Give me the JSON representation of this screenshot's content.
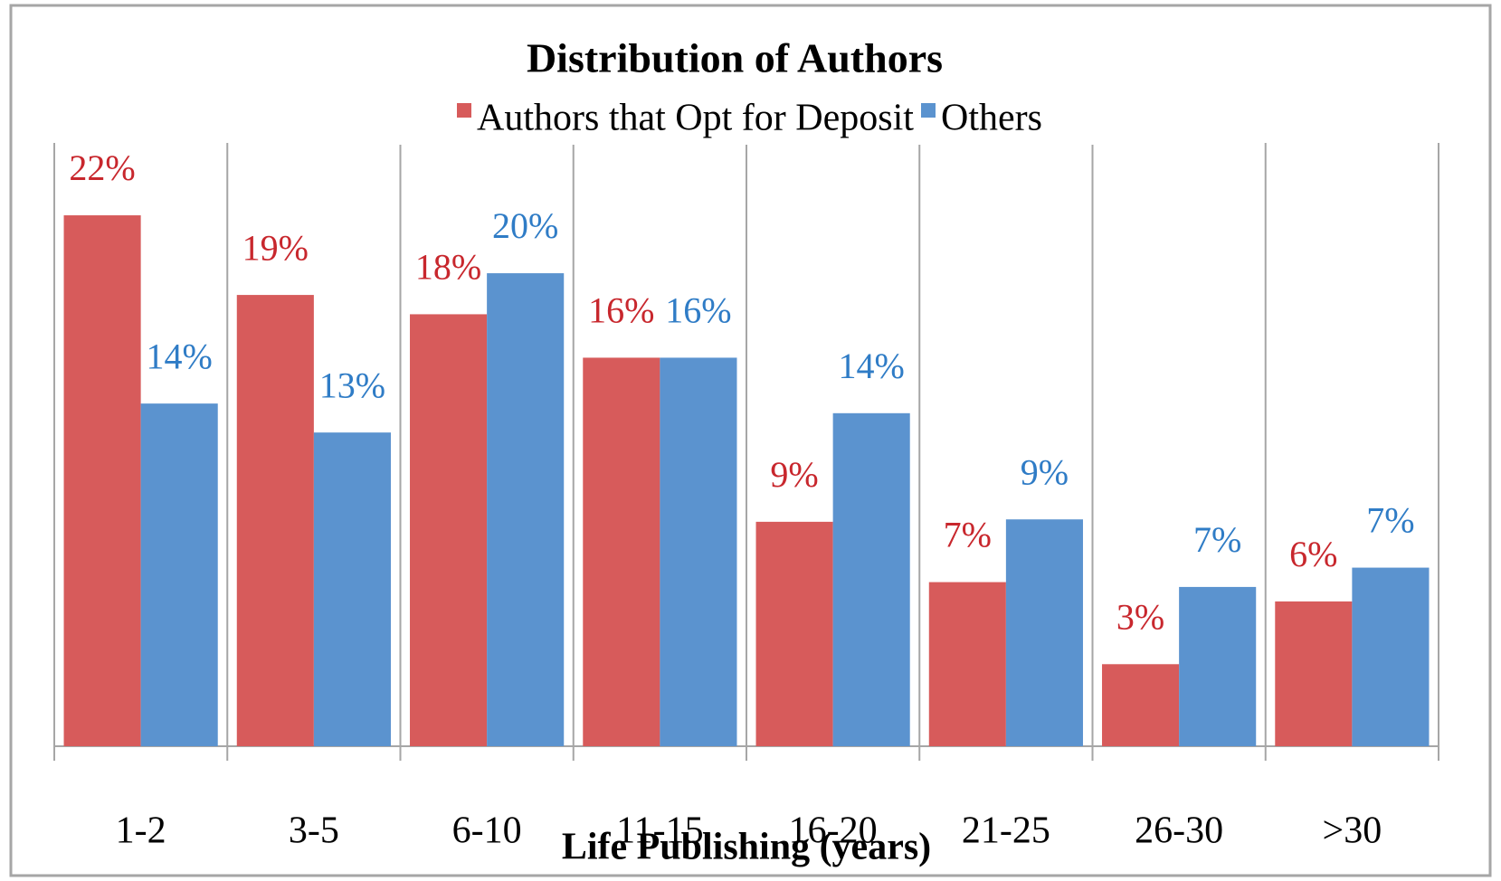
{
  "chart_data": {
    "type": "bar",
    "title": "Distribution of Authors",
    "x_label": "Life Publishing (years)",
    "categories": [
      "1-2",
      "3-5",
      "6-10",
      "11-15",
      "16-20",
      "21-25",
      "26-30",
      ">30"
    ],
    "series": [
      {
        "name": "Authors that Opt for Deposit",
        "color": "#d75b5b",
        "values": [
          22.0,
          18.7,
          17.9,
          16.1,
          9.3,
          6.8,
          3.4,
          6.0
        ],
        "value_labels": [
          "22%",
          "19%",
          "18%",
          "16%",
          "9%",
          "7%",
          "3%",
          "6%"
        ]
      },
      {
        "name": "Others",
        "color": "#5b93cf",
        "values": [
          14.2,
          13.0,
          19.6,
          16.1,
          13.8,
          9.4,
          6.6,
          7.4
        ],
        "value_labels": [
          "14%",
          "13%",
          "20%",
          "16%",
          "14%",
          "9%",
          "7%",
          "7%"
        ]
      }
    ],
    "ylim": [
      0,
      25
    ],
    "grid": true
  }
}
